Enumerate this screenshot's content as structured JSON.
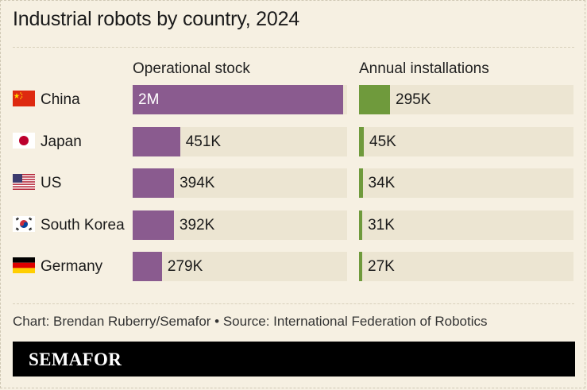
{
  "title": "Industrial robots by country, 2024",
  "columns": {
    "stock": "Operational stock",
    "installations": "Annual installations"
  },
  "credit": "Chart: Brendan Ruberry/Semafor • Source: International Federation of Robotics",
  "brand": "SEMAFOR",
  "colors": {
    "background": "#f6f0e2",
    "track": "#ece5d2",
    "stock_bar": "#8a5b8f",
    "installations_bar": "#6f9a3c",
    "brand_bar": "#000000"
  },
  "chart_data": {
    "type": "bar",
    "title": "Industrial robots by country, 2024",
    "categories": [
      "China",
      "Japan",
      "US",
      "South Korea",
      "Germany"
    ],
    "flags": [
      "china-flag-icon",
      "japan-flag-icon",
      "us-flag-icon",
      "south-korea-flag-icon",
      "germany-flag-icon"
    ],
    "series": [
      {
        "name": "Operational stock",
        "values": [
          2000000,
          451000,
          394000,
          392000,
          279000
        ],
        "labels": [
          "2M",
          "451K",
          "394K",
          "392K",
          "279K"
        ],
        "max": 2040000
      },
      {
        "name": "Annual installations",
        "values": [
          295000,
          45000,
          34000,
          31000,
          27000
        ],
        "labels": [
          "295K",
          "45K",
          "34K",
          "31K",
          "27K"
        ],
        "max": 2040000
      }
    ],
    "grid": false,
    "legend": "column headers"
  }
}
